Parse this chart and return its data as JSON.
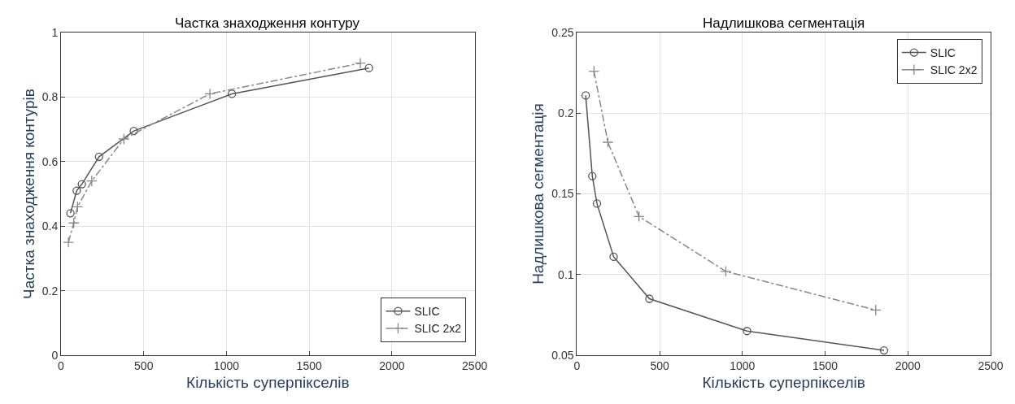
{
  "chart_data": [
    {
      "type": "line",
      "title": "Частка знаходження контуру",
      "xlabel": "Кількість суперпікселів",
      "ylabel": "Частка знаходження контурів",
      "xlim": [
        0,
        2500
      ],
      "xticks": [
        0,
        500,
        1000,
        1500,
        2000,
        2500
      ],
      "ylim": [
        0,
        1
      ],
      "yticks": [
        0,
        0.2,
        0.4,
        0.6,
        0.8,
        1
      ],
      "grid": true,
      "legend": "bottom right",
      "series": [
        {
          "name": "SLIC",
          "color": "#555555",
          "marker": "circle",
          "line_style": "solid",
          "x": [
            57,
            95,
            126,
            230,
            440,
            1033,
            1861
          ],
          "values": [
            0.44,
            0.51,
            0.53,
            0.615,
            0.695,
            0.81,
            0.89
          ]
        },
        {
          "name": "SLIC 2x2",
          "color": "#888888",
          "marker": "cross",
          "line_style": "dashed",
          "x": [
            45,
            77,
            100,
            186,
            380,
            900,
            1809
          ],
          "values": [
            0.35,
            0.41,
            0.46,
            0.54,
            0.67,
            0.81,
            0.905
          ]
        }
      ]
    },
    {
      "type": "line",
      "title": "Надлишкова сегментація",
      "xlabel": "Кількість суперпікселів",
      "ylabel": "Надлишкова сегментація",
      "xlim": [
        0,
        2500
      ],
      "xticks": [
        0,
        500,
        1000,
        1500,
        2000,
        2500
      ],
      "ylim": [
        0.05,
        0.25
      ],
      "yticks": [
        0.05,
        0.1,
        0.15,
        0.2,
        0.25
      ],
      "grid": true,
      "legend": "top right",
      "series": [
        {
          "name": "SLIC",
          "color": "#555555",
          "marker": "circle",
          "line_style": "solid",
          "x": [
            53,
            93,
            121,
            222,
            438,
            1028,
            1856
          ],
          "values": [
            0.211,
            0.161,
            0.144,
            0.111,
            0.085,
            0.065,
            0.053
          ]
        },
        {
          "name": "SLIC 2x2",
          "color": "#888888",
          "marker": "cross",
          "line_style": "dashed",
          "x": [
            103,
            187,
            375,
            900,
            1806
          ],
          "values": [
            0.226,
            0.182,
            0.136,
            0.102,
            0.078
          ]
        }
      ]
    }
  ]
}
